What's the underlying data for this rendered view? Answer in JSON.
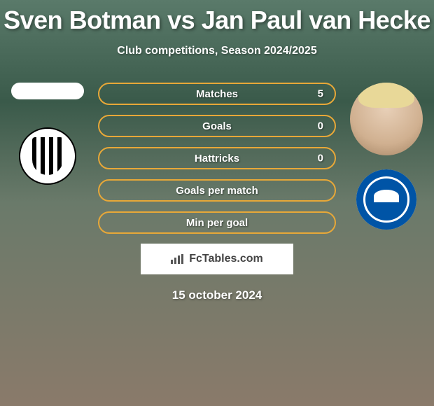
{
  "title": "Sven Botman vs Jan Paul van Hecke",
  "subtitle": "Club competitions, Season 2024/2025",
  "date": "15 october 2024",
  "watermark": "FcTables.com",
  "left": {
    "player_name": "Sven Botman",
    "club_name": "Newcastle United"
  },
  "right": {
    "player_name": "Jan Paul van Hecke",
    "club_name": "Brighton & Hove Albion"
  },
  "stats": [
    {
      "label": "Matches",
      "value": "5",
      "border_color": "#e8a838"
    },
    {
      "label": "Goals",
      "value": "0",
      "border_color": "#e8a838"
    },
    {
      "label": "Hattricks",
      "value": "0",
      "border_color": "#e8a838"
    },
    {
      "label": "Goals per match",
      "value": "",
      "border_color": "#e8a838"
    },
    {
      "label": "Min per goal",
      "value": "",
      "border_color": "#e8a838"
    }
  ],
  "colors": {
    "pill_text": "#ffffff",
    "title_text": "#ffffff",
    "watermark_bg": "#ffffff",
    "watermark_text": "#444444"
  }
}
